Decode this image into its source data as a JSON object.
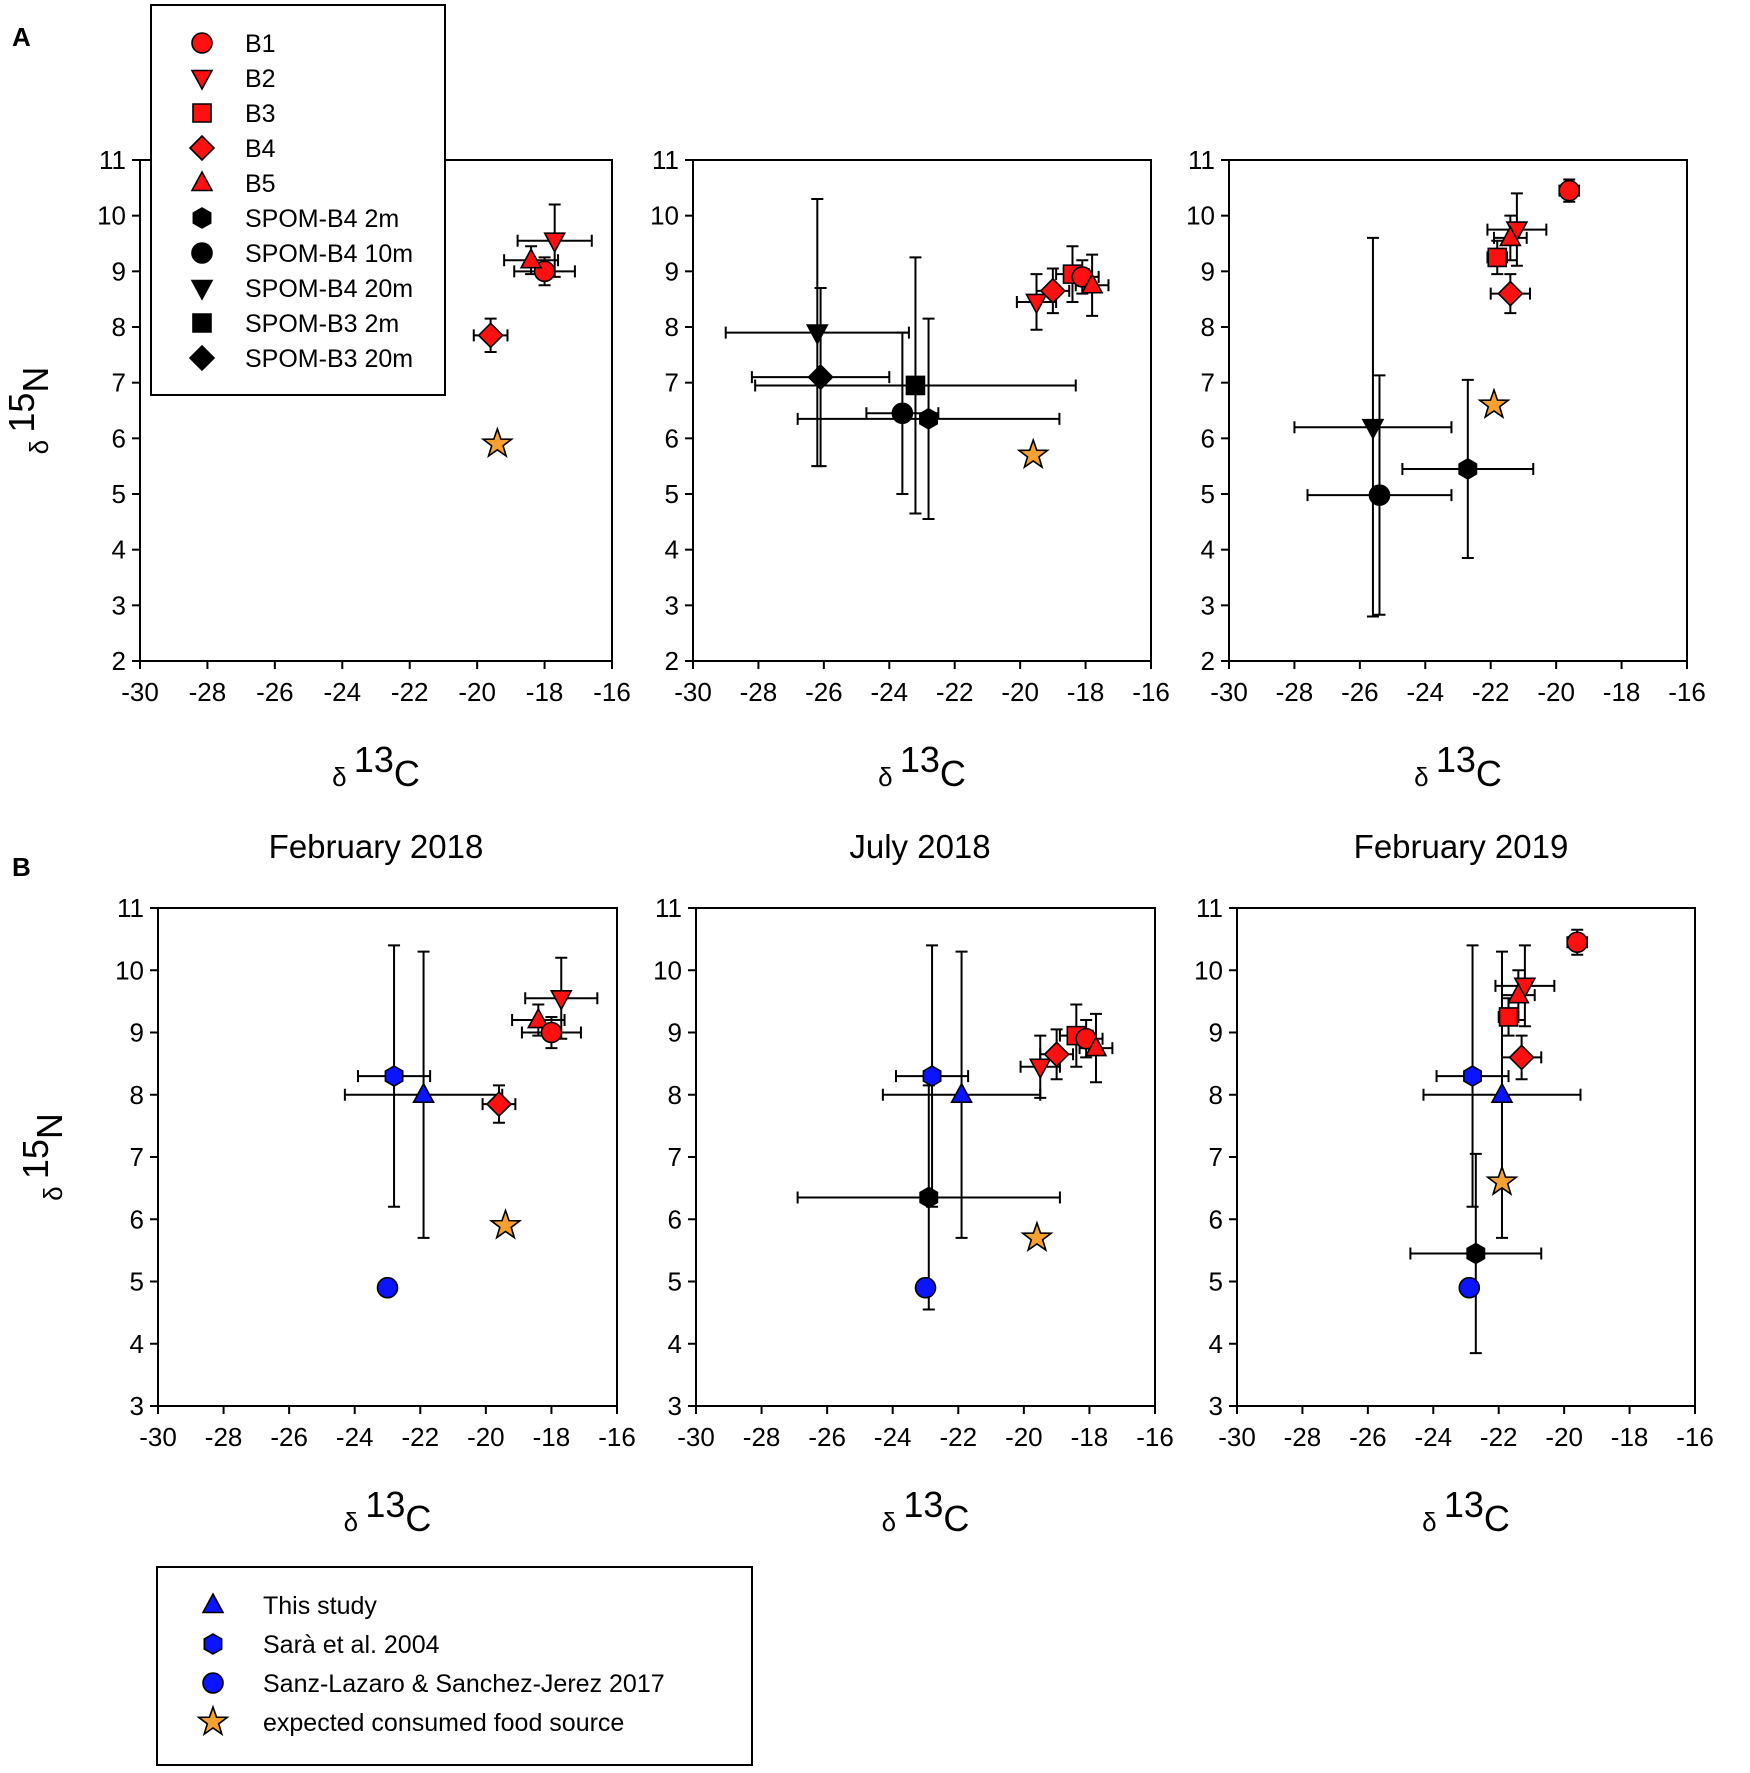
{
  "figure": {
    "panel_labels": [
      "A",
      "B"
    ],
    "column_titles": [
      "February 2018",
      "July 2018",
      "February 2019"
    ],
    "xlabel": {
      "prefix": "δ",
      "sup": "13",
      "main": "C"
    },
    "ylabel": {
      "prefix": "δ",
      "sup": "15",
      "main": "N"
    },
    "colors": {
      "red": "#ff1010",
      "black": "#000000",
      "blue": "#0a14ff",
      "orange": "#f5a030"
    }
  },
  "legend_a": [
    {
      "label": "B1",
      "marker": "circle",
      "color": "red"
    },
    {
      "label": "B2",
      "marker": "triangle-down",
      "color": "red"
    },
    {
      "label": "B3",
      "marker": "square",
      "color": "red"
    },
    {
      "label": "B4",
      "marker": "diamond",
      "color": "red"
    },
    {
      "label": "B5",
      "marker": "triangle-up",
      "color": "red"
    },
    {
      "label": "SPOM-B4 2m",
      "marker": "hexagon",
      "color": "black"
    },
    {
      "label": "SPOM-B4 10m",
      "marker": "circle",
      "color": "black"
    },
    {
      "label": "SPOM-B4 20m",
      "marker": "triangle-down",
      "color": "black"
    },
    {
      "label": "SPOM-B3 2m",
      "marker": "square",
      "color": "black"
    },
    {
      "label": "SPOM-B3 20m",
      "marker": "diamond",
      "color": "black"
    }
  ],
  "legend_b": [
    {
      "label": "This study",
      "marker": "triangle-up",
      "color": "blue"
    },
    {
      "label": "Sarà et al. 2004",
      "marker": "hexagon",
      "color": "blue"
    },
    {
      "label": "Sanz-Lazaro & Sanchez-Jerez 2017",
      "marker": "circle",
      "color": "blue"
    },
    {
      "label": "expected consumed food source",
      "marker": "star",
      "color": "orange"
    }
  ],
  "chart_data": [
    {
      "id": "A1",
      "type": "scatter",
      "row": "A",
      "title": "February 2018",
      "xlabel": "δ 13C",
      "ylabel": "δ 15N",
      "xlim": [
        -30,
        -16
      ],
      "ylim": [
        2,
        11
      ],
      "xticks": [
        -30,
        -28,
        -26,
        -24,
        -22,
        -20,
        -18,
        -16
      ],
      "yticks": [
        2,
        3,
        4,
        5,
        6,
        7,
        8,
        9,
        10,
        11
      ],
      "points": [
        {
          "series": "B1",
          "marker": "circle",
          "color": "red",
          "x": -18.0,
          "y": 9.0,
          "xerr": 0.9,
          "yerr": 0.25
        },
        {
          "series": "B2",
          "marker": "triangle-down",
          "color": "red",
          "x": -17.7,
          "y": 9.55,
          "xerr": 1.1,
          "yerr": 0.65
        },
        {
          "series": "B4",
          "marker": "diamond",
          "color": "red",
          "x": -19.6,
          "y": 7.85,
          "xerr": 0.5,
          "yerr": 0.3
        },
        {
          "series": "B5",
          "marker": "triangle-up",
          "color": "red",
          "x": -18.4,
          "y": 9.2,
          "xerr": 0.8,
          "yerr": 0.25
        },
        {
          "series": "food",
          "marker": "star",
          "color": "orange",
          "x": -19.4,
          "y": 5.9
        }
      ]
    },
    {
      "id": "A2",
      "type": "scatter",
      "row": "A",
      "title": "July 2018",
      "xlabel": "δ 13C",
      "ylabel": "δ 15N",
      "xlim": [
        -30,
        -16
      ],
      "ylim": [
        2,
        11
      ],
      "xticks": [
        -30,
        -28,
        -26,
        -24,
        -22,
        -20,
        -18,
        -16
      ],
      "yticks": [
        2,
        3,
        4,
        5,
        6,
        7,
        8,
        9,
        10,
        11
      ],
      "points": [
        {
          "series": "SPOM-B4 20m",
          "marker": "triangle-down",
          "color": "black",
          "x": -26.2,
          "y": 7.9,
          "xerr": 2.8,
          "yerr": 2.4
        },
        {
          "series": "SPOM-B3 20m",
          "marker": "diamond",
          "color": "black",
          "x": -26.1,
          "y": 7.1,
          "xerr": 2.1,
          "yerr": 1.6
        },
        {
          "series": "SPOM-B3 2m",
          "marker": "square",
          "color": "black",
          "x": -23.2,
          "y": 6.95,
          "xerr": 4.9,
          "yerr": 2.3
        },
        {
          "series": "SPOM-B4 10m",
          "marker": "circle",
          "color": "black",
          "x": -23.6,
          "y": 6.45,
          "xerr": 1.1,
          "yerr": 1.45
        },
        {
          "series": "SPOM-B4 2m",
          "marker": "hexagon",
          "color": "black",
          "x": -22.8,
          "y": 6.35,
          "xerr": 4.0,
          "yerr": 1.8
        },
        {
          "series": "B2",
          "marker": "triangle-down",
          "color": "red",
          "x": -19.5,
          "y": 8.45,
          "xerr": 0.6,
          "yerr": 0.5
        },
        {
          "series": "B4",
          "marker": "diamond",
          "color": "red",
          "x": -19.0,
          "y": 8.65,
          "xerr": 0.5,
          "yerr": 0.4
        },
        {
          "series": "B3",
          "marker": "square",
          "color": "red",
          "x": -18.4,
          "y": 8.95,
          "xerr": 0.5,
          "yerr": 0.5
        },
        {
          "series": "B1",
          "marker": "circle",
          "color": "red",
          "x": -18.1,
          "y": 8.9,
          "xerr": 0.5,
          "yerr": 0.3
        },
        {
          "series": "B5",
          "marker": "triangle-up",
          "color": "red",
          "x": -17.8,
          "y": 8.75,
          "xerr": 0.5,
          "yerr": 0.55
        },
        {
          "series": "food",
          "marker": "star",
          "color": "orange",
          "x": -19.6,
          "y": 5.7
        }
      ]
    },
    {
      "id": "A3",
      "type": "scatter",
      "row": "A",
      "title": "February 2019",
      "xlabel": "δ 13C",
      "ylabel": "δ 15N",
      "xlim": [
        -30,
        -16
      ],
      "ylim": [
        2,
        11
      ],
      "xticks": [
        -30,
        -28,
        -26,
        -24,
        -22,
        -20,
        -18,
        -16
      ],
      "yticks": [
        2,
        3,
        4,
        5,
        6,
        7,
        8,
        9,
        10,
        11
      ],
      "points": [
        {
          "series": "B1",
          "marker": "circle",
          "color": "red",
          "x": -19.6,
          "y": 10.45,
          "xerr": 0.3,
          "yerr": 0.2
        },
        {
          "series": "B2",
          "marker": "triangle-down",
          "color": "red",
          "x": -21.2,
          "y": 9.75,
          "xerr": 0.9,
          "yerr": 0.65
        },
        {
          "series": "B5",
          "marker": "triangle-up",
          "color": "red",
          "x": -21.4,
          "y": 9.6,
          "xerr": 0.5,
          "yerr": 0.4
        },
        {
          "series": "B3",
          "marker": "square",
          "color": "red",
          "x": -21.8,
          "y": 9.25,
          "xerr": 0.3,
          "yerr": 0.3
        },
        {
          "series": "B4",
          "marker": "diamond",
          "color": "red",
          "x": -21.4,
          "y": 8.6,
          "xerr": 0.6,
          "yerr": 0.35
        },
        {
          "series": "food",
          "marker": "star",
          "color": "orange",
          "x": -21.9,
          "y": 6.6
        },
        {
          "series": "SPOM-B4 20m",
          "marker": "triangle-down",
          "color": "black",
          "x": -25.6,
          "y": 6.2,
          "xerr": 2.4,
          "yerr": 3.4
        },
        {
          "series": "SPOM-B4 2m",
          "marker": "hexagon",
          "color": "black",
          "x": -22.7,
          "y": 5.45,
          "xerr": 2.0,
          "yerr": 1.6
        },
        {
          "series": "SPOM-B4 10m",
          "marker": "circle",
          "color": "black",
          "x": -25.4,
          "y": 4.98,
          "xerr": 2.2,
          "yerr": 2.15
        }
      ]
    },
    {
      "id": "B1",
      "type": "scatter",
      "row": "B",
      "title": "February 2018",
      "xlabel": "δ 13C",
      "ylabel": "δ 15N",
      "xlim": [
        -30,
        -16
      ],
      "ylim": [
        3,
        11
      ],
      "xticks": [
        -30,
        -28,
        -26,
        -24,
        -22,
        -20,
        -18,
        -16
      ],
      "yticks": [
        3,
        4,
        5,
        6,
        7,
        8,
        9,
        10,
        11
      ],
      "points": [
        {
          "series": "Sarà et al. 2004",
          "marker": "hexagon",
          "color": "blue",
          "x": -22.8,
          "y": 8.3,
          "xerr": 1.1,
          "yerr": 2.1
        },
        {
          "series": "This study",
          "marker": "triangle-up",
          "color": "blue",
          "x": -21.9,
          "y": 8.0,
          "xerr": 2.4,
          "yerr": 2.3
        },
        {
          "series": "Sanz-Lazaro & Sanchez-Jerez 2017",
          "marker": "circle",
          "color": "blue",
          "x": -23.0,
          "y": 4.9
        },
        {
          "series": "B2",
          "marker": "triangle-down",
          "color": "red",
          "x": -17.7,
          "y": 9.55,
          "xerr": 1.1,
          "yerr": 0.65
        },
        {
          "series": "B5",
          "marker": "triangle-up",
          "color": "red",
          "x": -18.4,
          "y": 9.2,
          "xerr": 0.8,
          "yerr": 0.25
        },
        {
          "series": "B1",
          "marker": "circle",
          "color": "red",
          "x": -18.0,
          "y": 9.0,
          "xerr": 0.9,
          "yerr": 0.25
        },
        {
          "series": "B4",
          "marker": "diamond",
          "color": "red",
          "x": -19.6,
          "y": 7.85,
          "xerr": 0.5,
          "yerr": 0.3
        },
        {
          "series": "food",
          "marker": "star",
          "color": "orange",
          "x": -19.4,
          "y": 5.9
        }
      ]
    },
    {
      "id": "B2",
      "type": "scatter",
      "row": "B",
      "title": "July 2018",
      "xlabel": "δ 13C",
      "ylabel": "δ 15N",
      "xlim": [
        -30,
        -16
      ],
      "ylim": [
        3,
        11
      ],
      "xticks": [
        -30,
        -28,
        -26,
        -24,
        -22,
        -20,
        -18,
        -16
      ],
      "yticks": [
        3,
        4,
        5,
        6,
        7,
        8,
        9,
        10,
        11
      ],
      "points": [
        {
          "series": "Sarà et al. 2004",
          "marker": "hexagon",
          "color": "blue",
          "x": -22.8,
          "y": 8.3,
          "xerr": 1.1,
          "yerr": 2.1
        },
        {
          "series": "This study",
          "marker": "triangle-up",
          "color": "blue",
          "x": -21.9,
          "y": 8.0,
          "xerr": 2.4,
          "yerr": 2.3
        },
        {
          "series": "SPOM-B4 2m",
          "marker": "hexagon",
          "color": "black",
          "x": -22.9,
          "y": 6.35,
          "xerr": 4.0,
          "yerr": 1.8
        },
        {
          "series": "Sanz-Lazaro & Sanchez-Jerez 2017",
          "marker": "circle",
          "color": "blue",
          "x": -23.0,
          "y": 4.9
        },
        {
          "series": "B2",
          "marker": "triangle-down",
          "color": "red",
          "x": -19.5,
          "y": 8.45,
          "xerr": 0.6,
          "yerr": 0.5
        },
        {
          "series": "B4",
          "marker": "diamond",
          "color": "red",
          "x": -19.0,
          "y": 8.65,
          "xerr": 0.5,
          "yerr": 0.4
        },
        {
          "series": "B3",
          "marker": "square",
          "color": "red",
          "x": -18.4,
          "y": 8.95,
          "xerr": 0.5,
          "yerr": 0.5
        },
        {
          "series": "B1",
          "marker": "circle",
          "color": "red",
          "x": -18.1,
          "y": 8.9,
          "xerr": 0.5,
          "yerr": 0.3
        },
        {
          "series": "B5",
          "marker": "triangle-up",
          "color": "red",
          "x": -17.8,
          "y": 8.75,
          "xerr": 0.5,
          "yerr": 0.55
        },
        {
          "series": "food",
          "marker": "star",
          "color": "orange",
          "x": -19.6,
          "y": 5.7
        }
      ]
    },
    {
      "id": "B3",
      "type": "scatter",
      "row": "B",
      "title": "February 2019",
      "xlabel": "δ 13C",
      "ylabel": "δ 15N",
      "xlim": [
        -30,
        -16
      ],
      "ylim": [
        3,
        11
      ],
      "xticks": [
        -30,
        -28,
        -26,
        -24,
        -22,
        -20,
        -18,
        -16
      ],
      "yticks": [
        3,
        4,
        5,
        6,
        7,
        8,
        9,
        10,
        11
      ],
      "points": [
        {
          "series": "B1",
          "marker": "circle",
          "color": "red",
          "x": -19.6,
          "y": 10.45,
          "xerr": 0.3,
          "yerr": 0.2
        },
        {
          "series": "B2",
          "marker": "triangle-down",
          "color": "red",
          "x": -21.2,
          "y": 9.75,
          "xerr": 0.9,
          "yerr": 0.65
        },
        {
          "series": "B5",
          "marker": "triangle-up",
          "color": "red",
          "x": -21.4,
          "y": 9.6,
          "xerr": 0.5,
          "yerr": 0.4
        },
        {
          "series": "B3",
          "marker": "square",
          "color": "red",
          "x": -21.7,
          "y": 9.25,
          "xerr": 0.3,
          "yerr": 0.3
        },
        {
          "series": "B4",
          "marker": "diamond",
          "color": "red",
          "x": -21.3,
          "y": 8.6,
          "xerr": 0.6,
          "yerr": 0.35
        },
        {
          "series": "Sarà et al. 2004",
          "marker": "hexagon",
          "color": "blue",
          "x": -22.8,
          "y": 8.3,
          "xerr": 1.1,
          "yerr": 2.1
        },
        {
          "series": "This study",
          "marker": "triangle-up",
          "color": "blue",
          "x": -21.9,
          "y": 8.0,
          "xerr": 2.4,
          "yerr": 2.3
        },
        {
          "series": "food",
          "marker": "star",
          "color": "orange",
          "x": -21.9,
          "y": 6.6
        },
        {
          "series": "SPOM-B4 2m",
          "marker": "hexagon",
          "color": "black",
          "x": -22.7,
          "y": 5.45,
          "xerr": 2.0,
          "yerr": 1.6
        },
        {
          "series": "Sanz-Lazaro & Sanchez-Jerez 2017",
          "marker": "circle",
          "color": "blue",
          "x": -22.9,
          "y": 4.9
        }
      ]
    }
  ]
}
